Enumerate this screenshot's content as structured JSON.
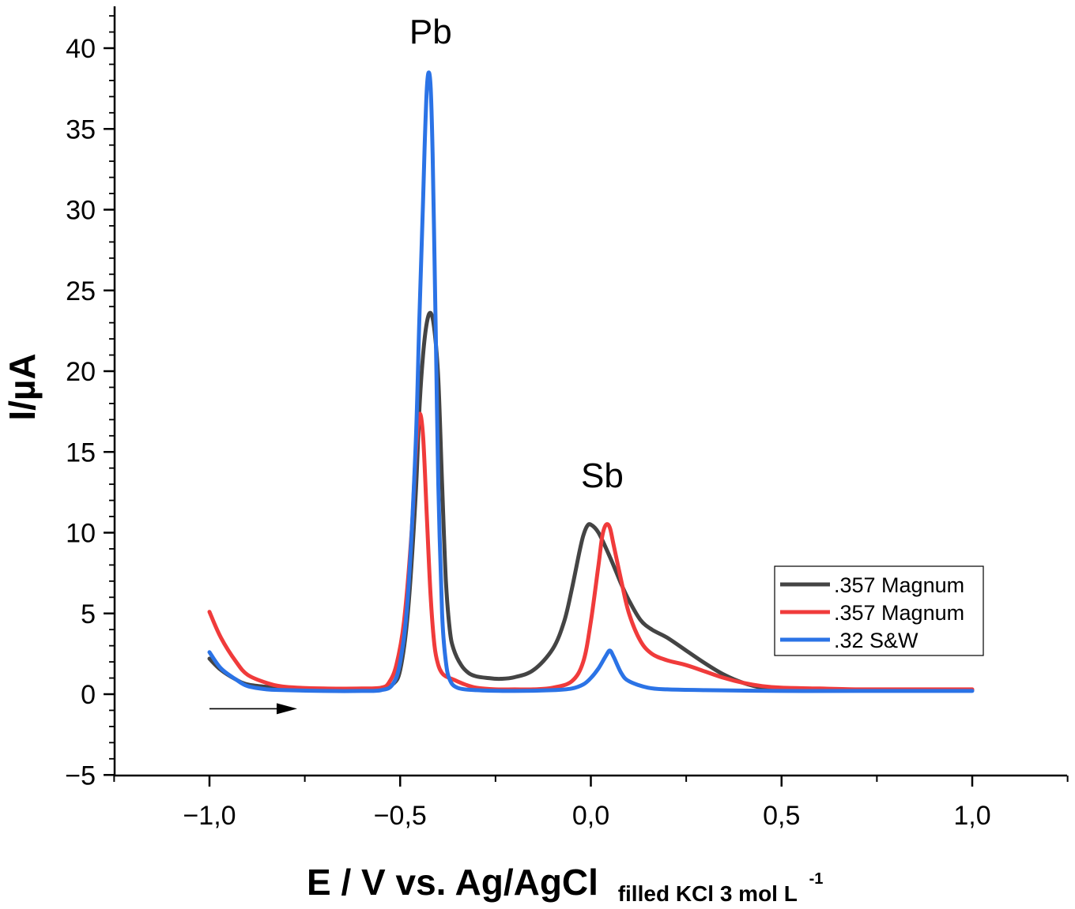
{
  "chart_data": {
    "type": "line",
    "title": "",
    "xlabel": "E / V vs. Ag/AgCl",
    "xlabel_subscript": "filled KCl 3 mol L",
    "xlabel_superscript": "-1",
    "ylabel": "I/µA",
    "xlim": [
      -1.25,
      1.25
    ],
    "ylim": [
      -5,
      42
    ],
    "x_ticks": [
      -1.0,
      -0.5,
      0.0,
      0.5,
      1.0
    ],
    "x_tick_labels": [
      "−1,0",
      "−0,5",
      "0,0",
      "0,5",
      "1,0"
    ],
    "y_ticks": [
      -5,
      0,
      5,
      10,
      15,
      20,
      25,
      30,
      35,
      40
    ],
    "y_tick_labels": [
      "−5",
      "0",
      "5",
      "10",
      "15",
      "20",
      "25",
      "30",
      "35",
      "40"
    ],
    "grid": false,
    "legend_position": "center-right",
    "annotations": [
      {
        "text": "Pb",
        "x": -0.42,
        "y": 40.3
      },
      {
        "text": "Sb",
        "x": 0.03,
        "y": 12.8
      }
    ],
    "arrow": {
      "x_start": -1.0,
      "x_end": -0.77,
      "y": -0.9,
      "direction": "right"
    },
    "series": [
      {
        "name": ".357 Magnum",
        "color": "#444444",
        "x": [
          -1.0,
          -0.97,
          -0.93,
          -0.9,
          -0.85,
          -0.8,
          -0.7,
          -0.6,
          -0.55,
          -0.52,
          -0.5,
          -0.48,
          -0.46,
          -0.45,
          -0.44,
          -0.43,
          -0.42,
          -0.41,
          -0.4,
          -0.39,
          -0.38,
          -0.37,
          -0.36,
          -0.34,
          -0.32,
          -0.3,
          -0.27,
          -0.24,
          -0.2,
          -0.15,
          -0.1,
          -0.07,
          -0.05,
          -0.03,
          -0.02,
          -0.01,
          0.0,
          0.02,
          0.05,
          0.08,
          0.1,
          0.13,
          0.16,
          0.2,
          0.25,
          0.3,
          0.35,
          0.4,
          0.45,
          0.5,
          0.6,
          0.7,
          0.8,
          0.9,
          1.0
        ],
        "y": [
          2.2,
          1.5,
          0.9,
          0.6,
          0.45,
          0.35,
          0.3,
          0.3,
          0.35,
          0.6,
          1.5,
          5.0,
          12.0,
          17.5,
          21.0,
          23.0,
          23.6,
          22.5,
          19.5,
          13.0,
          7.0,
          4.0,
          2.8,
          1.8,
          1.3,
          1.1,
          1.0,
          0.95,
          1.05,
          1.5,
          2.8,
          4.5,
          6.5,
          8.8,
          9.8,
          10.4,
          10.5,
          10.0,
          8.5,
          6.8,
          5.8,
          4.6,
          4.0,
          3.5,
          2.7,
          1.9,
          1.2,
          0.7,
          0.4,
          0.3,
          0.25,
          0.25,
          0.25,
          0.25,
          0.25
        ]
      },
      {
        "name": ".357 Magnum",
        "color": "#f03b3b",
        "x": [
          -1.0,
          -0.97,
          -0.93,
          -0.9,
          -0.85,
          -0.8,
          -0.7,
          -0.6,
          -0.55,
          -0.53,
          -0.51,
          -0.49,
          -0.47,
          -0.46,
          -0.45,
          -0.44,
          -0.43,
          -0.42,
          -0.41,
          -0.4,
          -0.39,
          -0.38,
          -0.36,
          -0.33,
          -0.3,
          -0.25,
          -0.2,
          -0.15,
          -0.1,
          -0.05,
          -0.02,
          0.0,
          0.02,
          0.03,
          0.04,
          0.05,
          0.06,
          0.08,
          0.1,
          0.13,
          0.16,
          0.2,
          0.25,
          0.3,
          0.35,
          0.4,
          0.45,
          0.5,
          0.6,
          0.7,
          0.8,
          0.9,
          1.0
        ],
        "y": [
          5.1,
          3.5,
          2.0,
          1.2,
          0.7,
          0.45,
          0.35,
          0.35,
          0.4,
          0.7,
          1.8,
          4.5,
          10.0,
          14.5,
          17.3,
          16.0,
          11.0,
          6.0,
          3.0,
          1.8,
          1.3,
          1.1,
          0.9,
          0.6,
          0.4,
          0.3,
          0.3,
          0.3,
          0.4,
          0.8,
          2.0,
          4.5,
          8.0,
          9.8,
          10.5,
          10.3,
          9.2,
          7.0,
          5.0,
          3.3,
          2.5,
          2.1,
          1.8,
          1.4,
          1.0,
          0.7,
          0.5,
          0.4,
          0.35,
          0.3,
          0.3,
          0.3,
          0.3
        ]
      },
      {
        "name": ".32 S&W",
        "color": "#2b73e6",
        "x": [
          -1.0,
          -0.97,
          -0.93,
          -0.9,
          -0.85,
          -0.8,
          -0.7,
          -0.6,
          -0.55,
          -0.52,
          -0.5,
          -0.48,
          -0.46,
          -0.45,
          -0.44,
          -0.435,
          -0.43,
          -0.425,
          -0.42,
          -0.415,
          -0.41,
          -0.405,
          -0.4,
          -0.39,
          -0.38,
          -0.37,
          -0.35,
          -0.3,
          -0.2,
          -0.1,
          -0.05,
          -0.02,
          0.0,
          0.02,
          0.04,
          0.05,
          0.06,
          0.08,
          0.1,
          0.15,
          0.2,
          0.3,
          0.5,
          0.7,
          1.0
        ],
        "y": [
          2.6,
          1.6,
          0.9,
          0.5,
          0.3,
          0.25,
          0.2,
          0.2,
          0.25,
          0.6,
          2.0,
          6.0,
          15.0,
          23.0,
          30.5,
          34.5,
          37.5,
          38.5,
          37.5,
          33.5,
          27.0,
          20.0,
          13.0,
          5.0,
          2.0,
          0.9,
          0.4,
          0.25,
          0.2,
          0.25,
          0.35,
          0.6,
          1.0,
          1.6,
          2.4,
          2.7,
          2.3,
          1.3,
          0.8,
          0.4,
          0.3,
          0.25,
          0.2,
          0.2,
          0.2
        ]
      }
    ]
  }
}
